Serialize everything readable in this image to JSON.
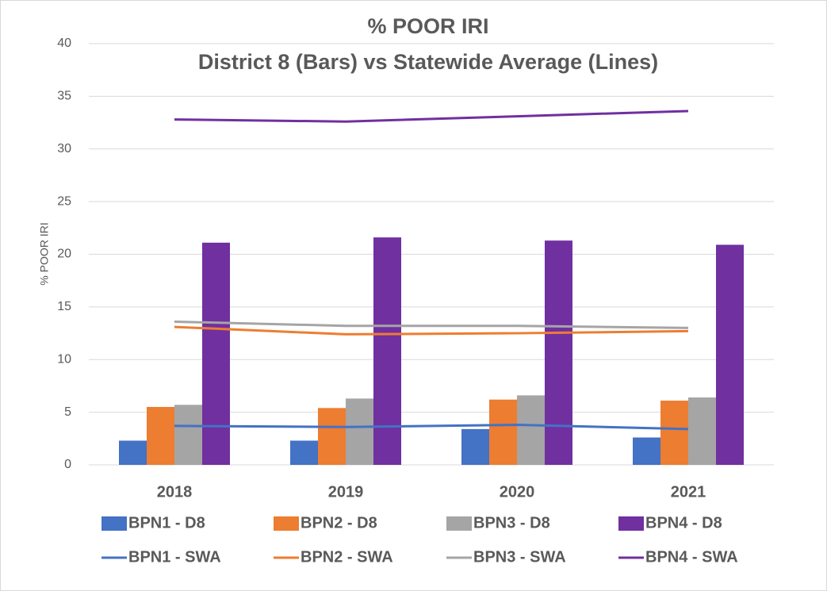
{
  "chart_data": {
    "type": "bar",
    "title": "% POOR IRI",
    "subtitle": "District 8 (Bars) vs Statewide Average (Lines)",
    "y_label": "% POOR IRI",
    "categories": [
      "2018",
      "2019",
      "2020",
      "2021"
    ],
    "series": [
      {
        "name": "BPN1 - D8",
        "type": "bar",
        "color": "#4472c4",
        "values": [
          2.3,
          2.3,
          3.4,
          2.6
        ]
      },
      {
        "name": "BPN2 - D8",
        "type": "bar",
        "color": "#ed7d31",
        "values": [
          5.5,
          5.4,
          6.2,
          6.1
        ]
      },
      {
        "name": "BPN3 - D8",
        "type": "bar",
        "color": "#a5a5a5",
        "values": [
          5.7,
          6.3,
          6.6,
          6.4
        ]
      },
      {
        "name": "BPN4 - D8",
        "type": "bar",
        "color": "#7030a0",
        "values": [
          21.1,
          21.6,
          21.3,
          20.9
        ]
      },
      {
        "name": "BPN1 - SWA",
        "type": "line",
        "color": "#4472c4",
        "values": [
          3.7,
          3.6,
          3.8,
          3.4
        ]
      },
      {
        "name": "BPN2 - SWA",
        "type": "line",
        "color": "#ed7d31",
        "values": [
          13.1,
          12.4,
          12.5,
          12.7
        ]
      },
      {
        "name": "BPN3 - SWA",
        "type": "line",
        "color": "#a5a5a5",
        "values": [
          13.6,
          13.2,
          13.2,
          13.0
        ]
      },
      {
        "name": "BPN4 - SWA",
        "type": "line",
        "color": "#7030a0",
        "values": [
          32.8,
          32.6,
          33.1,
          33.6
        ]
      }
    ],
    "ylim": [
      0,
      40
    ],
    "yticks": [
      0,
      5,
      10,
      15,
      20,
      25,
      30,
      35,
      40
    ],
    "grid": true,
    "legend": "bottom"
  }
}
